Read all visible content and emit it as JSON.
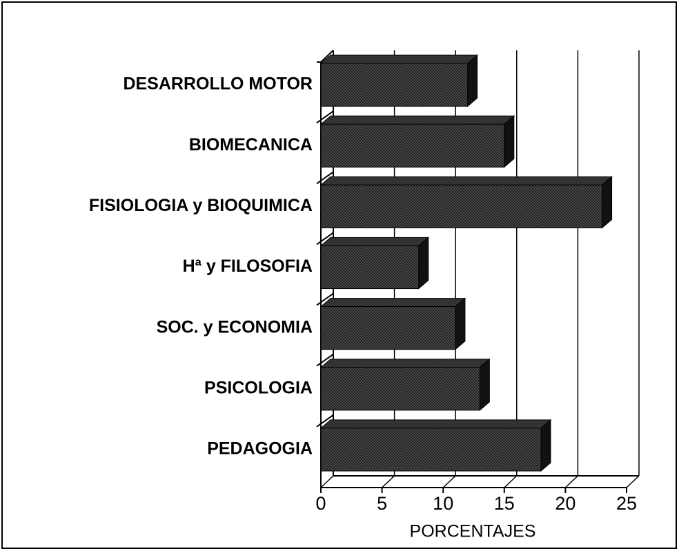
{
  "chart_data": {
    "type": "bar",
    "orientation": "horizontal",
    "categories": [
      "DESARROLLO MOTOR",
      "BIOMECANICA",
      "FISIOLOGIA y BIOQUIMICA",
      "Hª y FILOSOFIA",
      "SOC. y ECONOMIA",
      "PSICOLOGIA",
      "PEDAGOGIA"
    ],
    "values": [
      12,
      15,
      23,
      8,
      11,
      13,
      18
    ],
    "color": "#222222",
    "x_label": "PORCENTAJES",
    "xlim": [
      0,
      25
    ],
    "xticks": [
      0,
      5,
      10,
      15,
      20,
      25
    ],
    "grid": true
  }
}
